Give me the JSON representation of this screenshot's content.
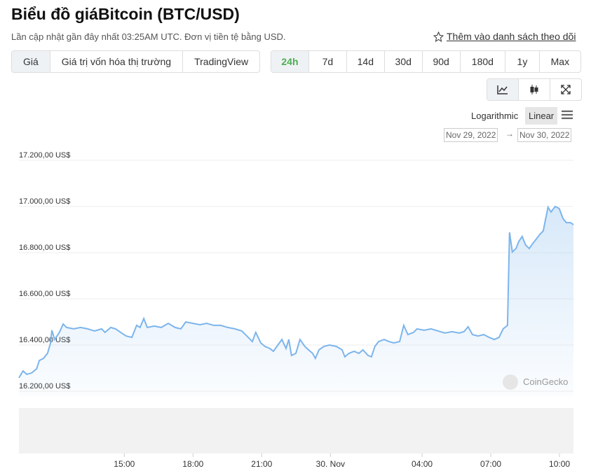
{
  "header": {
    "title": "Biểu đồ giáBitcoin (BTC/USD)",
    "subtitle": "Lần cập nhật gần đây nhất 03:25AM UTC. Đơn vị tiền tệ bằng USD.",
    "watchlist": "Thêm vào danh sách theo dõi"
  },
  "tabs": [
    "Giá",
    "Giá trị vốn hóa thị trường",
    "TradingView"
  ],
  "ranges": [
    "24h",
    "7d",
    "14d",
    "30d",
    "90d",
    "180d",
    "1y",
    "Max"
  ],
  "scale_options": [
    "Logarithmic",
    "Linear"
  ],
  "date_range": {
    "from": "Nov 29, 2022",
    "to": "Nov 30, 2022"
  },
  "watermark": "CoinGecko",
  "chart_data": {
    "type": "line",
    "color": "#7cb5ec",
    "x": [
      10.4,
      10.58,
      10.74,
      10.95,
      11.17,
      11.29,
      11.47,
      11.65,
      11.78,
      11.84,
      11.96,
      12.17,
      12.33,
      12.48,
      12.79,
      13.09,
      13.4,
      13.7,
      14.01,
      14.16,
      14.41,
      14.62,
      14.84,
      15.08,
      15.33,
      15.54,
      15.69,
      15.85,
      16.0,
      16.31,
      16.61,
      16.92,
      17.22,
      17.47,
      17.68,
      17.99,
      18.3,
      18.6,
      18.91,
      19.21,
      19.52,
      19.83,
      20.13,
      20.35,
      20.59,
      20.74,
      20.96,
      21.14,
      21.35,
      21.51,
      21.66,
      21.88,
      22.06,
      22.18,
      22.3,
      22.49,
      22.67,
      22.88,
      23.04,
      23.22,
      23.34,
      23.5,
      23.71,
      23.96,
      24.26,
      24.51,
      24.63,
      24.81,
      25.03,
      25.24,
      25.42,
      25.64,
      25.79,
      25.94,
      26.1,
      26.34,
      26.56,
      26.77,
      27.02,
      27.2,
      27.38,
      27.63,
      27.78,
      28.09,
      28.39,
      28.7,
      29.0,
      29.31,
      29.62,
      29.83,
      30.01,
      30.2,
      30.44,
      30.69,
      30.93,
      31.15,
      31.36,
      31.54,
      31.73,
      31.82,
      31.94,
      32.1,
      32.22,
      32.37,
      32.52,
      32.68,
      32.83,
      32.98,
      33.14,
      33.29,
      33.38,
      33.5,
      33.63,
      33.81,
      33.99,
      34.15,
      34.3,
      34.48,
      34.61
    ],
    "values": [
      16258,
      16288,
      16273,
      16279,
      16297,
      16333,
      16342,
      16364,
      16409,
      16464,
      16424,
      16455,
      16491,
      16476,
      16470,
      16476,
      16470,
      16461,
      16470,
      16455,
      16476,
      16470,
      16455,
      16439,
      16433,
      16485,
      16476,
      16515,
      16476,
      16482,
      16476,
      16494,
      16476,
      16470,
      16500,
      16494,
      16488,
      16494,
      16485,
      16485,
      16476,
      16470,
      16461,
      16439,
      16415,
      16455,
      16409,
      16394,
      16385,
      16373,
      16394,
      16424,
      16385,
      16424,
      16355,
      16364,
      16424,
      16394,
      16379,
      16364,
      16342,
      16379,
      16394,
      16400,
      16394,
      16379,
      16349,
      16364,
      16373,
      16364,
      16379,
      16355,
      16349,
      16394,
      16415,
      16424,
      16415,
      16409,
      16415,
      16485,
      16445,
      16455,
      16470,
      16464,
      16470,
      16461,
      16452,
      16458,
      16452,
      16458,
      16479,
      16445,
      16439,
      16445,
      16433,
      16424,
      16433,
      16470,
      16485,
      16888,
      16803,
      16818,
      16848,
      16870,
      16833,
      16818,
      16839,
      16858,
      16879,
      16894,
      16939,
      16997,
      16976,
      17000,
      16991,
      16948,
      16930,
      16930,
      16921
    ],
    "xlim": [
      10.4,
      34.61
    ],
    "xticks": [
      {
        "value": 15,
        "label": "15:00"
      },
      {
        "value": 18,
        "label": "18:00"
      },
      {
        "value": 21,
        "label": "21:00"
      },
      {
        "value": 24,
        "label": "30. Nov"
      },
      {
        "value": 28,
        "label": "04:00"
      },
      {
        "value": 31,
        "label": "07:00"
      },
      {
        "value": 34,
        "label": "10:00"
      }
    ],
    "ylim": [
      16200,
      17200
    ],
    "yticks": [
      {
        "value": 16200,
        "label": "16.200,00 US$"
      },
      {
        "value": 16400,
        "label": "16.400,00 US$"
      },
      {
        "value": 16600,
        "label": "16.600,00 US$"
      },
      {
        "value": 16800,
        "label": "16.800,00 US$"
      },
      {
        "value": 17000,
        "label": "17.000,00 US$"
      },
      {
        "value": 17200,
        "label": "17.200,00 US$"
      }
    ],
    "grid": true
  }
}
